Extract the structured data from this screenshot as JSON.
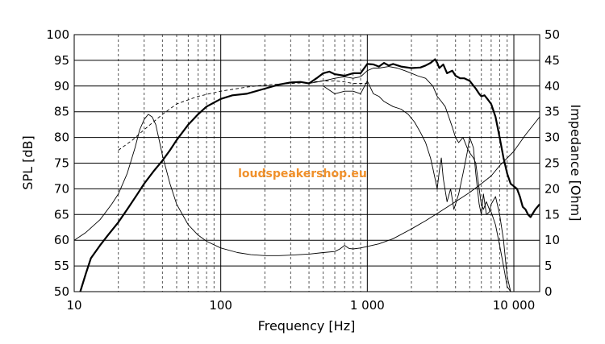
{
  "chart_data": {
    "type": "line",
    "title": "",
    "watermark": "loudspeakershop.eu",
    "xlabel": "Frequency [Hz]",
    "ylabel_left": "SPL [dB]",
    "ylabel_right": "Impedance [Ohm]",
    "x_scale": "log",
    "xlim": [
      10,
      15000
    ],
    "ylim_left": [
      50,
      100
    ],
    "ylim_right": [
      0,
      50
    ],
    "grid": true,
    "legend": "none",
    "x_ticks": [
      {
        "value": 10,
        "label": "10"
      },
      {
        "value": 100,
        "label": "100"
      },
      {
        "value": 1000,
        "label": "1 000"
      },
      {
        "value": 10000,
        "label": "10 000"
      }
    ],
    "y_left_ticks": [
      "50",
      "55",
      "60",
      "65",
      "70",
      "75",
      "80",
      "85",
      "90",
      "95",
      "100"
    ],
    "y_right_ticks": [
      "0",
      "5",
      "10",
      "15",
      "20",
      "25",
      "30",
      "35",
      "40",
      "45",
      "50"
    ],
    "series": [
      {
        "axis": "left",
        "style": "thick",
        "color": "#000000",
        "x": [
          11,
          12,
          13,
          15,
          17,
          20,
          23,
          27,
          30,
          35,
          40,
          45,
          50,
          60,
          70,
          80,
          100,
          120,
          150,
          200,
          250,
          300,
          350,
          400,
          450,
          500,
          550,
          600,
          700,
          800,
          900,
          1000,
          1100,
          1200,
          1300,
          1400,
          1500,
          1700,
          2000,
          2300,
          2500,
          2700,
          2900,
          3000,
          3100,
          3300,
          3500,
          3800,
          4000,
          4300,
          4600,
          5000,
          5500,
          5800,
          6000,
          6300,
          6600,
          7000,
          7500,
          8000,
          8500,
          9000,
          9500,
          10000,
          10500,
          11000,
          11500,
          12000,
          12500,
          13000,
          14000,
          15000
        ],
        "y": [
          50,
          53.5,
          56.5,
          59,
          61,
          63.5,
          66,
          69,
          71,
          73.5,
          75.5,
          77.5,
          79.5,
          82.5,
          84.5,
          86,
          87.5,
          88.2,
          88.5,
          89.5,
          90.3,
          90.7,
          90.8,
          90.5,
          91.5,
          92.5,
          92.8,
          92.3,
          92,
          92.5,
          92.5,
          94.3,
          94.2,
          93.8,
          94.5,
          94,
          94.3,
          93.8,
          93.5,
          93.6,
          94,
          94.5,
          95.2,
          94.5,
          93.5,
          94.2,
          92.5,
          93,
          92,
          91.5,
          91.5,
          91,
          89.5,
          88.5,
          88,
          88.2,
          87.5,
          86.5,
          84,
          80,
          76,
          73,
          71,
          70.5,
          70,
          68.5,
          66.5,
          66,
          65,
          64.5,
          66,
          67
        ]
      },
      {
        "axis": "left",
        "style": "dashed",
        "color": "#000000",
        "x": [
          20,
          25,
          30,
          40,
          50,
          70,
          100,
          150,
          200,
          300,
          400,
          500,
          600,
          700,
          800,
          900,
          1000
        ],
        "y": [
          77.5,
          79.5,
          81.5,
          84.5,
          86.5,
          88,
          89,
          89.8,
          90.2,
          90.5,
          90.7,
          91,
          91,
          90.8,
          90.5,
          90.5,
          90.5
        ]
      },
      {
        "axis": "left",
        "style": "thin",
        "color": "#000000",
        "x": [
          400,
          500,
          600,
          700,
          800,
          900,
          1000,
          1100,
          1200,
          1400,
          1600,
          1800,
          2000,
          2200,
          2500,
          2800,
          3000,
          3200,
          3400,
          3600,
          3800,
          4000,
          4200,
          4500,
          4800,
          5000,
          5300,
          5500,
          5800,
          6000,
          6200,
          6500,
          6800,
          7000,
          7500,
          8000,
          8500,
          9000,
          9500,
          10000
        ],
        "y": [
          90.5,
          91,
          91.5,
          91.8,
          91.5,
          91.8,
          93,
          93.5,
          93.5,
          93.8,
          93.5,
          93,
          92.5,
          92,
          91.5,
          90,
          88,
          87,
          86,
          84,
          82,
          80,
          79,
          80,
          78,
          77,
          76,
          75,
          70,
          67,
          66,
          67.5,
          66,
          65.5,
          63,
          59,
          55,
          51,
          50,
          50
        ]
      },
      {
        "axis": "left",
        "style": "thin",
        "color": "#000000",
        "x": [
          500,
          600,
          700,
          800,
          900,
          1000,
          1100,
          1200,
          1300,
          1500,
          1700,
          1900,
          2100,
          2300,
          2500,
          2700,
          2800,
          2900,
          3000,
          3100,
          3200,
          3300,
          3500,
          3700,
          3900,
          4200,
          4500,
          4800,
          5000,
          5300,
          5500,
          5800,
          6000,
          6200,
          6500,
          6800,
          7000,
          7500,
          8000,
          8500,
          9000,
          9500,
          10000
        ],
        "y": [
          90,
          88.5,
          89,
          89,
          88.5,
          91,
          88.5,
          88,
          87,
          86,
          85.5,
          84.5,
          83,
          81,
          79,
          76,
          74,
          72,
          70,
          73.5,
          76,
          72,
          67.5,
          70,
          66,
          69,
          73,
          77,
          80,
          78,
          73,
          67,
          65,
          69,
          65,
          65.5,
          67,
          68.5,
          65,
          60,
          53,
          50,
          50
        ]
      },
      {
        "axis": "right",
        "style": "thin",
        "color": "#000000",
        "x": [
          10,
          12,
          15,
          18,
          20,
          23,
          26,
          28,
          30,
          32,
          34,
          36,
          38,
          40,
          45,
          50,
          60,
          70,
          80,
          100,
          130,
          160,
          200,
          250,
          300,
          400,
          500,
          600,
          650,
          700,
          750,
          800,
          900,
          1000,
          1200,
          1500,
          2000,
          2500,
          3000,
          4000,
          5000,
          6000,
          7000,
          8000,
          10000,
          12000,
          15000
        ],
        "y": [
          10,
          11.5,
          14,
          17,
          19,
          23,
          28,
          31.5,
          33.5,
          34.5,
          34,
          32.5,
          29.5,
          26.5,
          21,
          17,
          13,
          11,
          9.8,
          8.5,
          7.6,
          7.2,
          7,
          7,
          7.1,
          7.3,
          7.6,
          7.8,
          8.3,
          9,
          8.4,
          8.3,
          8.5,
          8.8,
          9.3,
          10.3,
          12.2,
          13.8,
          15.2,
          17.5,
          19.3,
          21,
          22.5,
          24.5,
          27.3,
          30.5,
          34
        ]
      }
    ]
  }
}
